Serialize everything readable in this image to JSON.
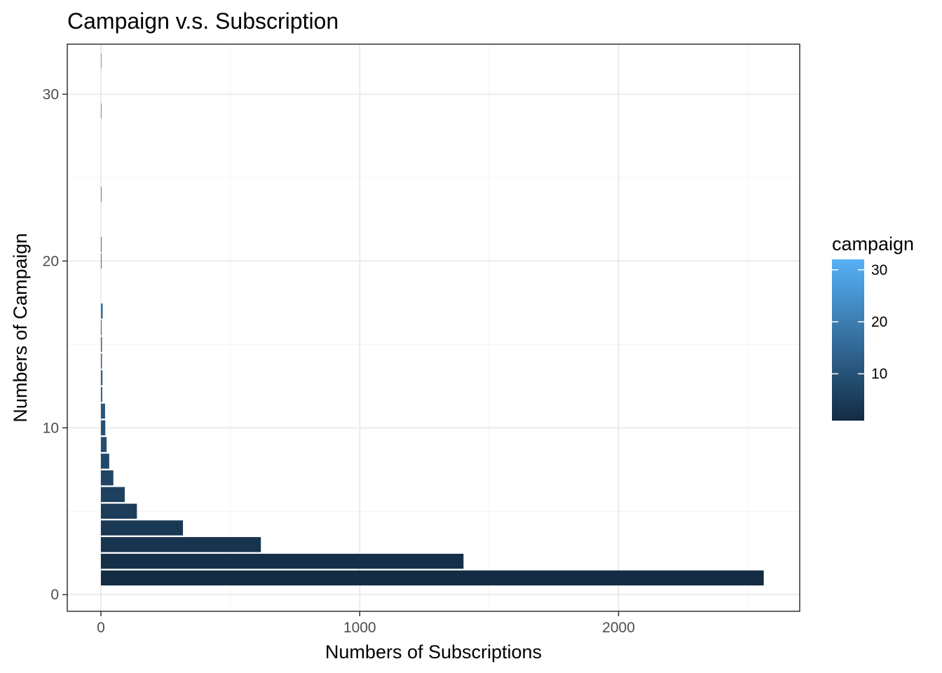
{
  "chart_data": {
    "type": "bar",
    "orientation": "horizontal",
    "title": "Campaign v.s. Subscription",
    "xlabel": "Numbers of Subscriptions",
    "ylabel": "Numbers of Campaign",
    "xlim": [
      -130,
      2700
    ],
    "ylim": [
      -1,
      33
    ],
    "x_ticks": [
      0,
      1000,
      2000
    ],
    "y_ticks": [
      0,
      10,
      20,
      30
    ],
    "grid": true,
    "legend": {
      "title": "campaign",
      "position": "right",
      "type": "colorbar",
      "range": [
        1,
        32
      ],
      "ticks": [
        10,
        20,
        30
      ],
      "low_color": "#132B43",
      "high_color": "#56B1F7"
    },
    "series": [
      {
        "name": "",
        "campaign": [
          1,
          2,
          3,
          4,
          5,
          6,
          7,
          8,
          9,
          10,
          11,
          12,
          13,
          14,
          15,
          16,
          17,
          20,
          21,
          24,
          29,
          32
        ],
        "values": [
          2561,
          1401,
          618,
          317,
          139,
          92,
          48,
          32,
          22,
          17,
          16,
          5,
          6,
          4,
          4,
          3,
          7,
          2,
          3,
          2,
          1,
          1
        ]
      }
    ]
  }
}
